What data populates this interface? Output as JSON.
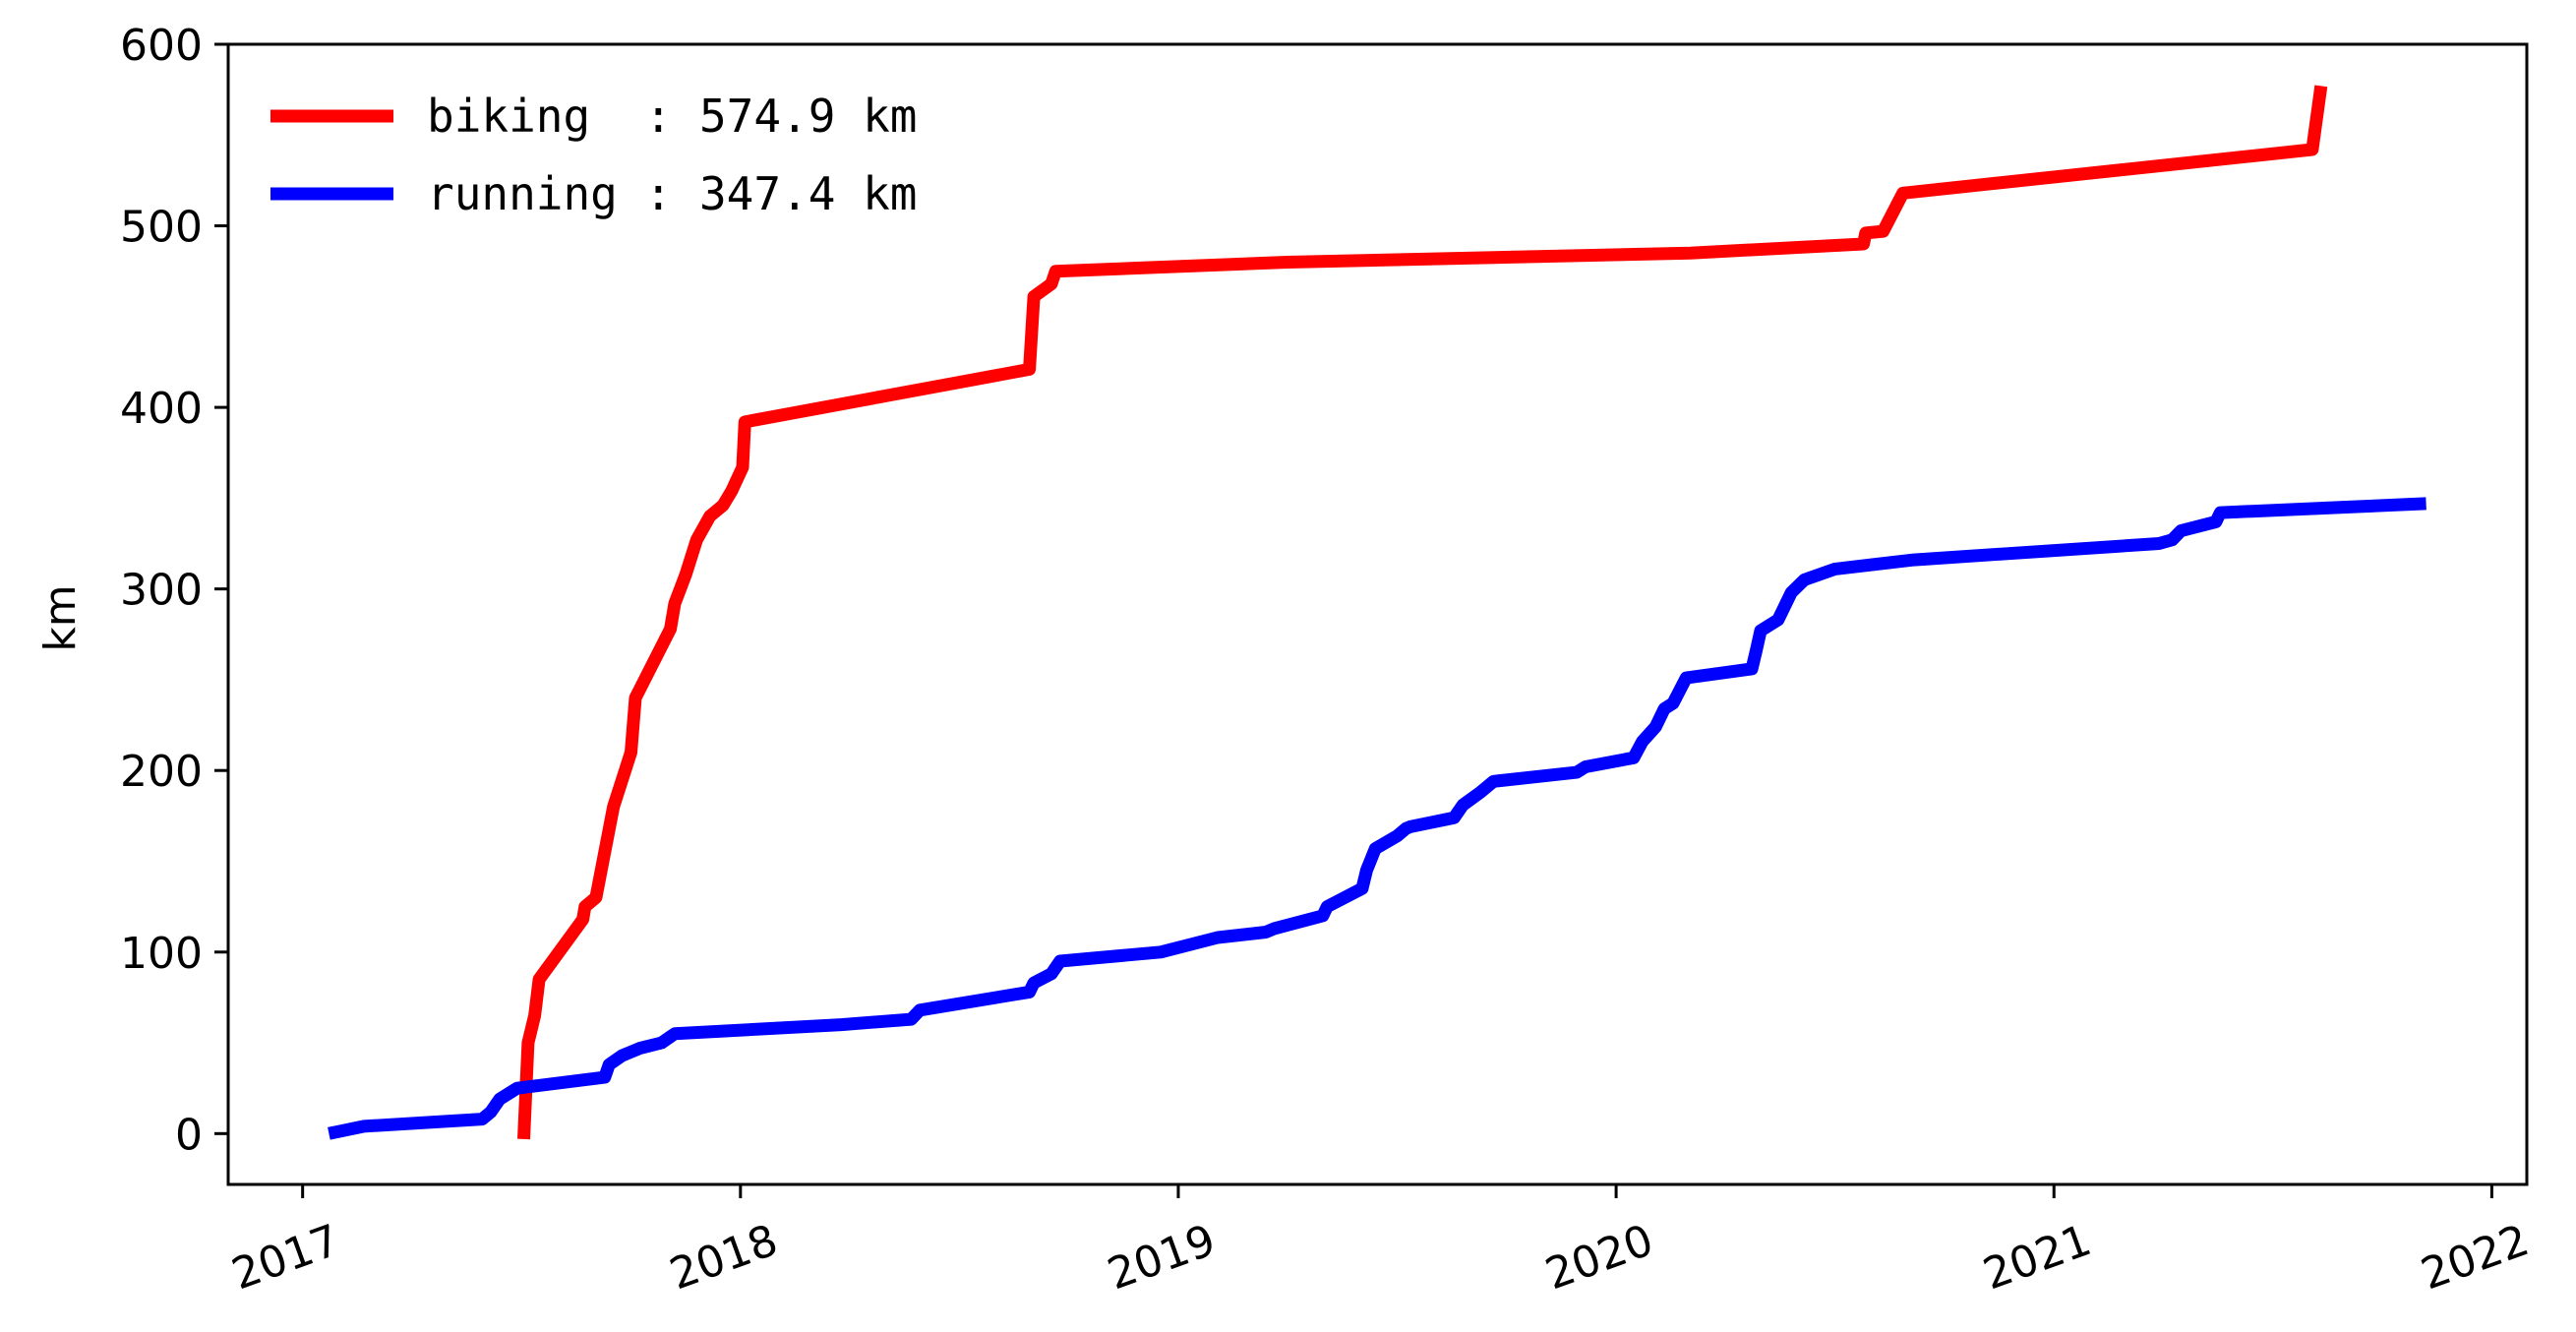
{
  "chart_data": {
    "type": "line",
    "title": "",
    "xlabel": "",
    "ylabel": "km",
    "xlim": [
      2016.83,
      2022.08
    ],
    "ylim": [
      -28,
      600
    ],
    "x_ticks": [
      {
        "value": 2017,
        "label": "2017"
      },
      {
        "value": 2018,
        "label": "2018"
      },
      {
        "value": 2019,
        "label": "2019"
      },
      {
        "value": 2020,
        "label": "2020"
      },
      {
        "value": 2021,
        "label": "2021"
      },
      {
        "value": 2022,
        "label": "2022"
      }
    ],
    "y_ticks": [
      {
        "value": 0,
        "label": "0"
      },
      {
        "value": 100,
        "label": "100"
      },
      {
        "value": 200,
        "label": "200"
      },
      {
        "value": 300,
        "label": "300"
      },
      {
        "value": 400,
        "label": "400"
      },
      {
        "value": 500,
        "label": "500"
      },
      {
        "value": 600,
        "label": "600"
      }
    ],
    "grid": false,
    "legend_position": "top-left",
    "series": [
      {
        "key": "biking",
        "legend_label": "biking  : 574.9 km",
        "color": "#ff0000",
        "points": [
          [
            2017.505,
            -3
          ],
          [
            2017.515,
            50
          ],
          [
            2017.53,
            65
          ],
          [
            2017.54,
            85
          ],
          [
            2017.64,
            118
          ],
          [
            2017.645,
            125
          ],
          [
            2017.67,
            130
          ],
          [
            2017.71,
            180
          ],
          [
            2017.75,
            210
          ],
          [
            2017.76,
            240
          ],
          [
            2017.84,
            278
          ],
          [
            2017.85,
            292
          ],
          [
            2017.875,
            308
          ],
          [
            2017.9,
            327
          ],
          [
            2017.93,
            340
          ],
          [
            2017.96,
            346
          ],
          [
            2017.98,
            354
          ],
          [
            2018.005,
            367
          ],
          [
            2018.01,
            392
          ],
          [
            2018.66,
            421
          ],
          [
            2018.67,
            461
          ],
          [
            2018.71,
            468
          ],
          [
            2018.72,
            475
          ],
          [
            2019.25,
            480
          ],
          [
            2020.17,
            485
          ],
          [
            2020.565,
            490
          ],
          [
            2020.57,
            496
          ],
          [
            2020.61,
            497
          ],
          [
            2020.655,
            518
          ],
          [
            2021.59,
            542
          ],
          [
            2021.61,
            577
          ]
        ]
      },
      {
        "key": "running",
        "legend_label": "running : 347.4 km",
        "color": "#0000ff",
        "points": [
          [
            2017.06,
            0
          ],
          [
            2017.14,
            4
          ],
          [
            2017.41,
            8
          ],
          [
            2017.43,
            12
          ],
          [
            2017.45,
            19
          ],
          [
            2017.49,
            25
          ],
          [
            2017.69,
            31
          ],
          [
            2017.7,
            38
          ],
          [
            2017.73,
            43
          ],
          [
            2017.77,
            47
          ],
          [
            2017.82,
            50
          ],
          [
            2017.85,
            55
          ],
          [
            2018.23,
            60
          ],
          [
            2018.39,
            63
          ],
          [
            2018.41,
            68
          ],
          [
            2018.66,
            78
          ],
          [
            2018.67,
            83
          ],
          [
            2018.71,
            88
          ],
          [
            2018.73,
            95
          ],
          [
            2018.96,
            100
          ],
          [
            2019.09,
            108
          ],
          [
            2019.2,
            111
          ],
          [
            2019.22,
            113
          ],
          [
            2019.33,
            120
          ],
          [
            2019.34,
            125
          ],
          [
            2019.42,
            135
          ],
          [
            2019.43,
            145
          ],
          [
            2019.45,
            157
          ],
          [
            2019.5,
            164
          ],
          [
            2019.52,
            168
          ],
          [
            2019.53,
            169
          ],
          [
            2019.63,
            174
          ],
          [
            2019.65,
            181
          ],
          [
            2019.69,
            188
          ],
          [
            2019.72,
            194
          ],
          [
            2019.91,
            199
          ],
          [
            2019.93,
            202
          ],
          [
            2020.04,
            207
          ],
          [
            2020.06,
            216
          ],
          [
            2020.09,
            224
          ],
          [
            2020.11,
            234
          ],
          [
            2020.13,
            237
          ],
          [
            2020.16,
            251
          ],
          [
            2020.31,
            256
          ],
          [
            2020.32,
            266
          ],
          [
            2020.33,
            277
          ],
          [
            2020.37,
            283
          ],
          [
            2020.4,
            298
          ],
          [
            2020.43,
            305
          ],
          [
            2020.5,
            311
          ],
          [
            2020.68,
            316
          ],
          [
            2021.24,
            325
          ],
          [
            2021.27,
            327
          ],
          [
            2021.29,
            332
          ],
          [
            2021.37,
            337
          ],
          [
            2021.38,
            342
          ],
          [
            2021.85,
            347
          ]
        ]
      }
    ]
  }
}
